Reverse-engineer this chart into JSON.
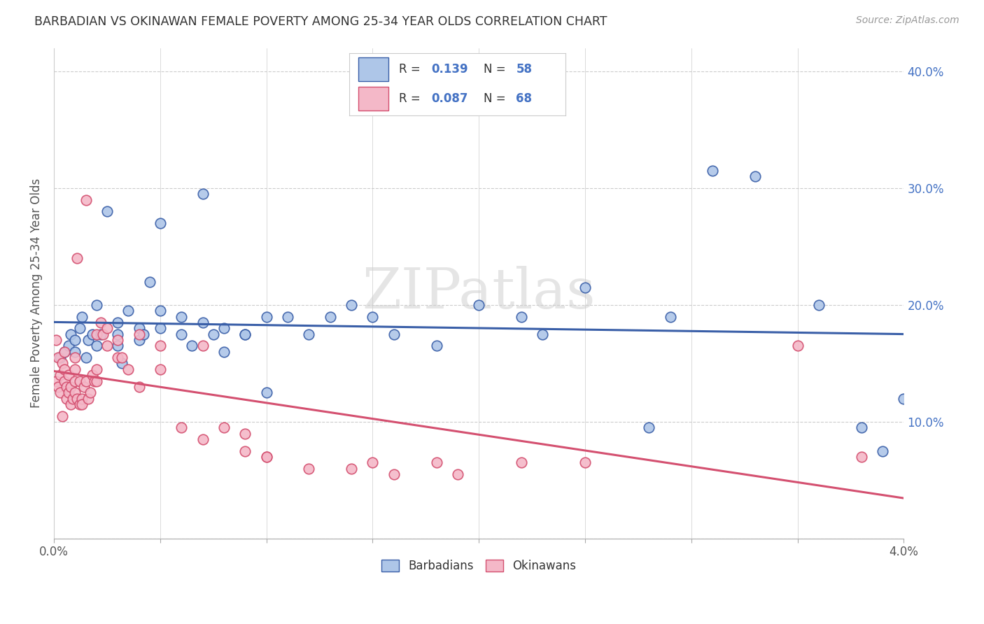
{
  "title": "BARBADIAN VS OKINAWAN FEMALE POVERTY AMONG 25-34 YEAR OLDS CORRELATION CHART",
  "source": "Source: ZipAtlas.com",
  "ylabel": "Female Poverty Among 25-34 Year Olds",
  "xlim": [
    0.0,
    0.04
  ],
  "ylim": [
    0.0,
    0.42
  ],
  "xticks": [
    0.0,
    0.005,
    0.01,
    0.015,
    0.02,
    0.025,
    0.03,
    0.035,
    0.04
  ],
  "ytick_positions": [
    0.0,
    0.1,
    0.2,
    0.3,
    0.4
  ],
  "yticklabels_right": [
    "",
    "10.0%",
    "20.0%",
    "30.0%",
    "40.0%"
  ],
  "barbadian_color": "#aec6e8",
  "okinawan_color": "#f4b8c8",
  "barbadian_line_color": "#3a5fa8",
  "okinawan_line_color": "#d45070",
  "legend_R_barbadian": "0.139",
  "legend_N_barbadian": "58",
  "legend_R_okinawan": "0.087",
  "legend_N_okinawan": "68",
  "background_color": "#ffffff",
  "watermark": "ZIPatlas",
  "barbadian_x": [
    0.0003,
    0.0005,
    0.0007,
    0.0008,
    0.001,
    0.001,
    0.0012,
    0.0013,
    0.0015,
    0.0016,
    0.0018,
    0.002,
    0.002,
    0.0022,
    0.0025,
    0.003,
    0.003,
    0.003,
    0.0032,
    0.0035,
    0.004,
    0.004,
    0.0042,
    0.0045,
    0.005,
    0.005,
    0.005,
    0.006,
    0.006,
    0.0065,
    0.007,
    0.007,
    0.0075,
    0.008,
    0.008,
    0.009,
    0.009,
    0.01,
    0.01,
    0.011,
    0.012,
    0.013,
    0.014,
    0.015,
    0.016,
    0.018,
    0.02,
    0.022,
    0.023,
    0.025,
    0.028,
    0.029,
    0.031,
    0.033,
    0.036,
    0.038,
    0.039,
    0.04
  ],
  "barbadian_y": [
    0.155,
    0.16,
    0.165,
    0.175,
    0.16,
    0.17,
    0.18,
    0.19,
    0.155,
    0.17,
    0.175,
    0.165,
    0.2,
    0.175,
    0.28,
    0.165,
    0.175,
    0.185,
    0.15,
    0.195,
    0.18,
    0.17,
    0.175,
    0.22,
    0.18,
    0.195,
    0.27,
    0.19,
    0.175,
    0.165,
    0.185,
    0.295,
    0.175,
    0.18,
    0.16,
    0.175,
    0.175,
    0.19,
    0.125,
    0.19,
    0.175,
    0.19,
    0.2,
    0.19,
    0.175,
    0.165,
    0.2,
    0.19,
    0.175,
    0.215,
    0.095,
    0.19,
    0.315,
    0.31,
    0.2,
    0.095,
    0.075,
    0.12
  ],
  "okinawan_x": [
    0.0001,
    0.0001,
    0.0002,
    0.0002,
    0.0003,
    0.0003,
    0.0004,
    0.0004,
    0.0005,
    0.0005,
    0.0005,
    0.0006,
    0.0006,
    0.0007,
    0.0007,
    0.0008,
    0.0008,
    0.0009,
    0.001,
    0.001,
    0.001,
    0.001,
    0.0011,
    0.0011,
    0.0012,
    0.0012,
    0.0013,
    0.0013,
    0.0014,
    0.0015,
    0.0015,
    0.0016,
    0.0017,
    0.0018,
    0.0019,
    0.002,
    0.002,
    0.002,
    0.0022,
    0.0023,
    0.0025,
    0.0025,
    0.003,
    0.003,
    0.0032,
    0.0035,
    0.004,
    0.004,
    0.005,
    0.005,
    0.006,
    0.007,
    0.007,
    0.008,
    0.009,
    0.009,
    0.01,
    0.01,
    0.012,
    0.014,
    0.015,
    0.016,
    0.018,
    0.019,
    0.022,
    0.025,
    0.035,
    0.038
  ],
  "okinawan_y": [
    0.17,
    0.135,
    0.155,
    0.13,
    0.14,
    0.125,
    0.15,
    0.105,
    0.16,
    0.145,
    0.135,
    0.13,
    0.12,
    0.14,
    0.125,
    0.115,
    0.13,
    0.12,
    0.155,
    0.145,
    0.135,
    0.125,
    0.24,
    0.12,
    0.135,
    0.115,
    0.12,
    0.115,
    0.13,
    0.29,
    0.135,
    0.12,
    0.125,
    0.14,
    0.135,
    0.145,
    0.135,
    0.175,
    0.185,
    0.175,
    0.18,
    0.165,
    0.17,
    0.155,
    0.155,
    0.145,
    0.13,
    0.175,
    0.145,
    0.165,
    0.095,
    0.085,
    0.165,
    0.095,
    0.09,
    0.075,
    0.07,
    0.07,
    0.06,
    0.06,
    0.065,
    0.055,
    0.065,
    0.055,
    0.065,
    0.065,
    0.165,
    0.07
  ]
}
